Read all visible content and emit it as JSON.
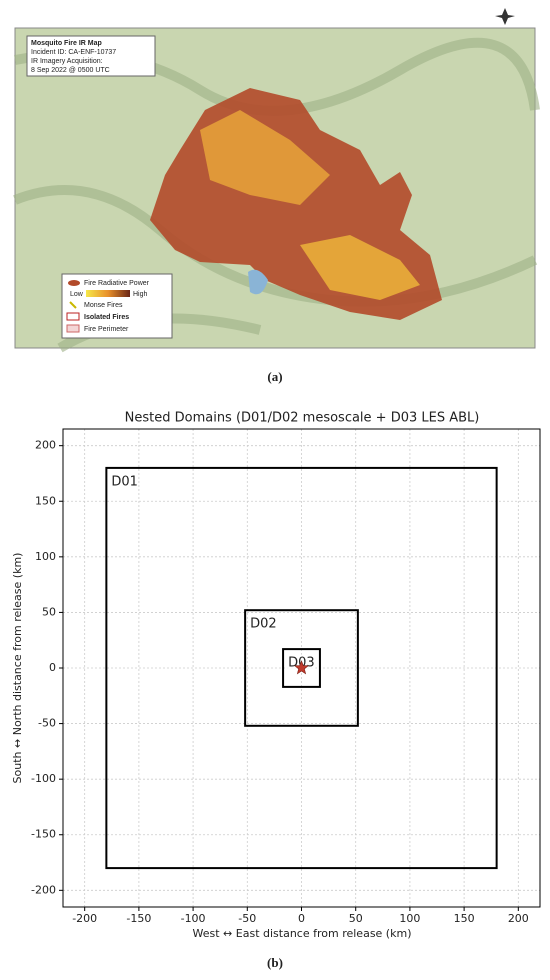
{
  "map": {
    "title": "Mosquito Fire IR Map",
    "info": [
      "Incident ID: CA-ENF-10737",
      "IR Imagery Acquisition:",
      "8 Sep 2022 @ 0500 UTC"
    ],
    "legend": {
      "title": "Fire Radiative Power",
      "low": "Low",
      "high": "High",
      "items": [
        "Monse Fires",
        "Isolated Fires",
        "Fire Perimeter"
      ]
    }
  },
  "captions": [
    "(a)",
    "(b)"
  ],
  "chart_data": {
    "type": "domains",
    "title": "Nested Domains (D01/D02 mesoscale + D03 LES ABL)",
    "x_label": "West ↔ East distance from release (km)",
    "y_label": "South ↔ North distance from release (km)",
    "xlim": [
      -220,
      220
    ],
    "ylim": [
      -215,
      215
    ],
    "xticks": [
      -200,
      -150,
      -100,
      -50,
      0,
      50,
      100,
      150,
      200
    ],
    "yticks": [
      -200,
      -150,
      -100,
      -50,
      0,
      50,
      100,
      150,
      200
    ],
    "grid": true,
    "boxes": [
      {
        "name": "D01",
        "x": [
          -180,
          180
        ],
        "y": [
          -180,
          180
        ]
      },
      {
        "name": "D02",
        "x": [
          -52,
          52
        ],
        "y": [
          -52,
          52
        ]
      },
      {
        "name": "D03",
        "x": [
          -17,
          17
        ],
        "y": [
          -17,
          17
        ]
      }
    ],
    "release": {
      "x": 0,
      "y": 0,
      "color": "#c0392b"
    }
  }
}
